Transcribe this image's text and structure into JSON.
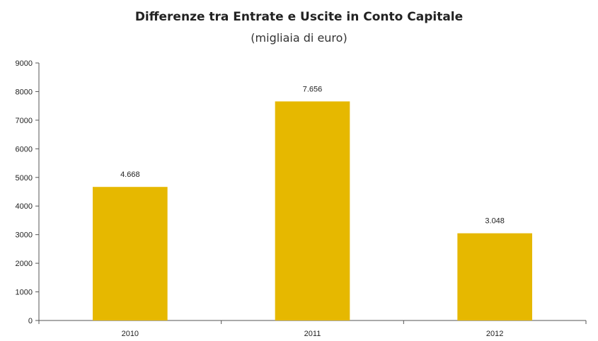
{
  "chart_data": {
    "type": "bar",
    "title": "Differenze tra Entrate e Uscite in Conto Capitale",
    "subtitle": "(migliaia di euro)",
    "xlabel": "",
    "ylabel": "",
    "categories": [
      "2010",
      "2011",
      "2012"
    ],
    "values": [
      4668,
      7656,
      3048
    ],
    "data_labels": [
      "4.668",
      "7.656",
      "3.048"
    ],
    "ylim": [
      0,
      9000
    ],
    "yticks": [
      0,
      1000,
      2000,
      3000,
      4000,
      5000,
      6000,
      7000,
      8000,
      9000
    ],
    "grid": false,
    "legend": "none",
    "colors": {
      "bar": "#E6B800",
      "axis": "#555555",
      "text": "#222222"
    }
  }
}
